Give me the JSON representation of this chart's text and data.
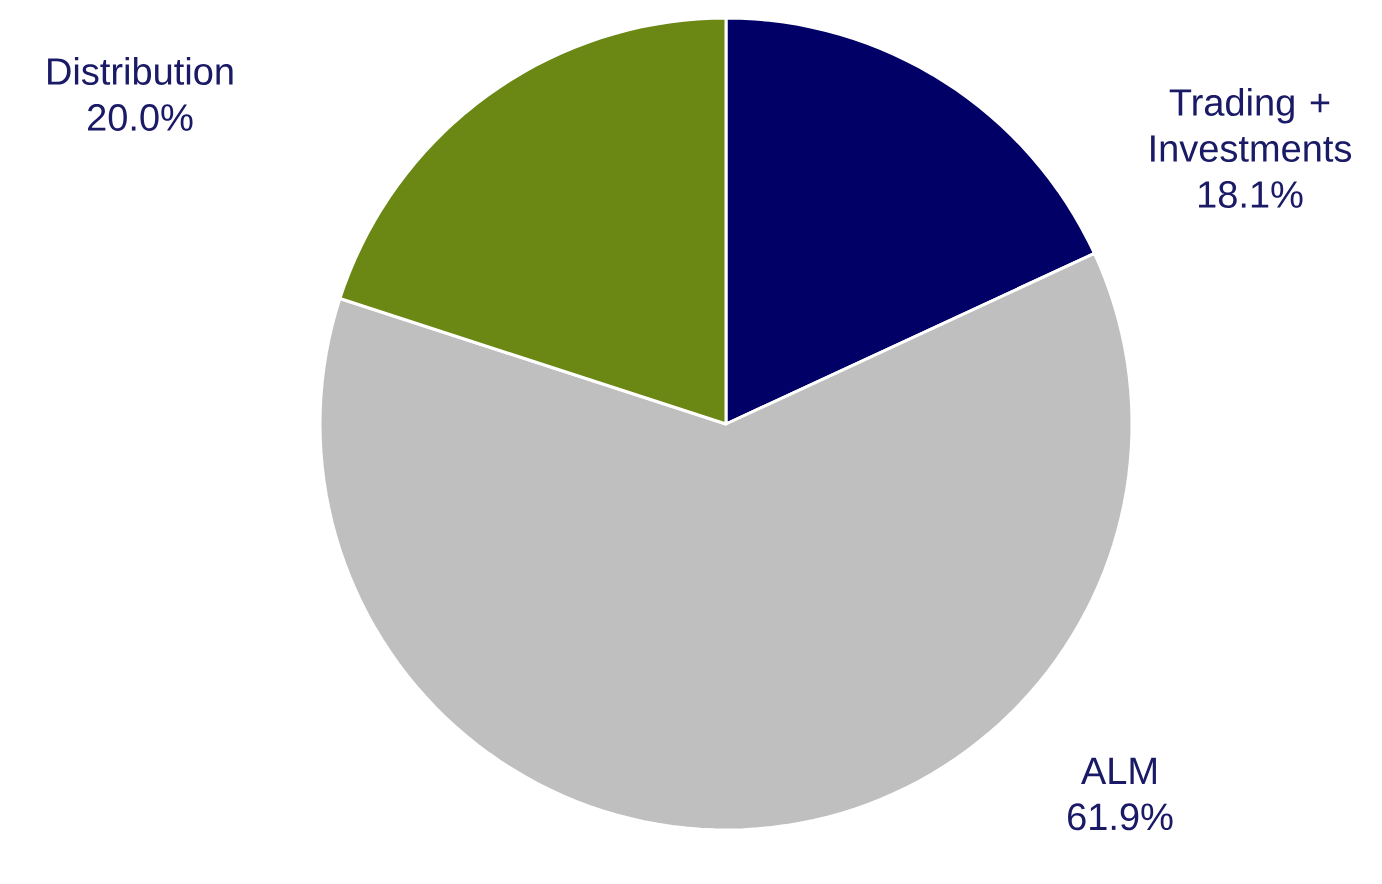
{
  "chart_data": {
    "type": "pie",
    "categories": [
      "Trading + Investments",
      "ALM",
      "Distribution"
    ],
    "values": [
      18.1,
      61.9,
      20.0
    ],
    "value_labels": [
      "18.1%",
      "61.9%",
      "20.0%"
    ],
    "colors": [
      "#000066",
      "#bfbfbf",
      "#6b8714"
    ]
  }
}
